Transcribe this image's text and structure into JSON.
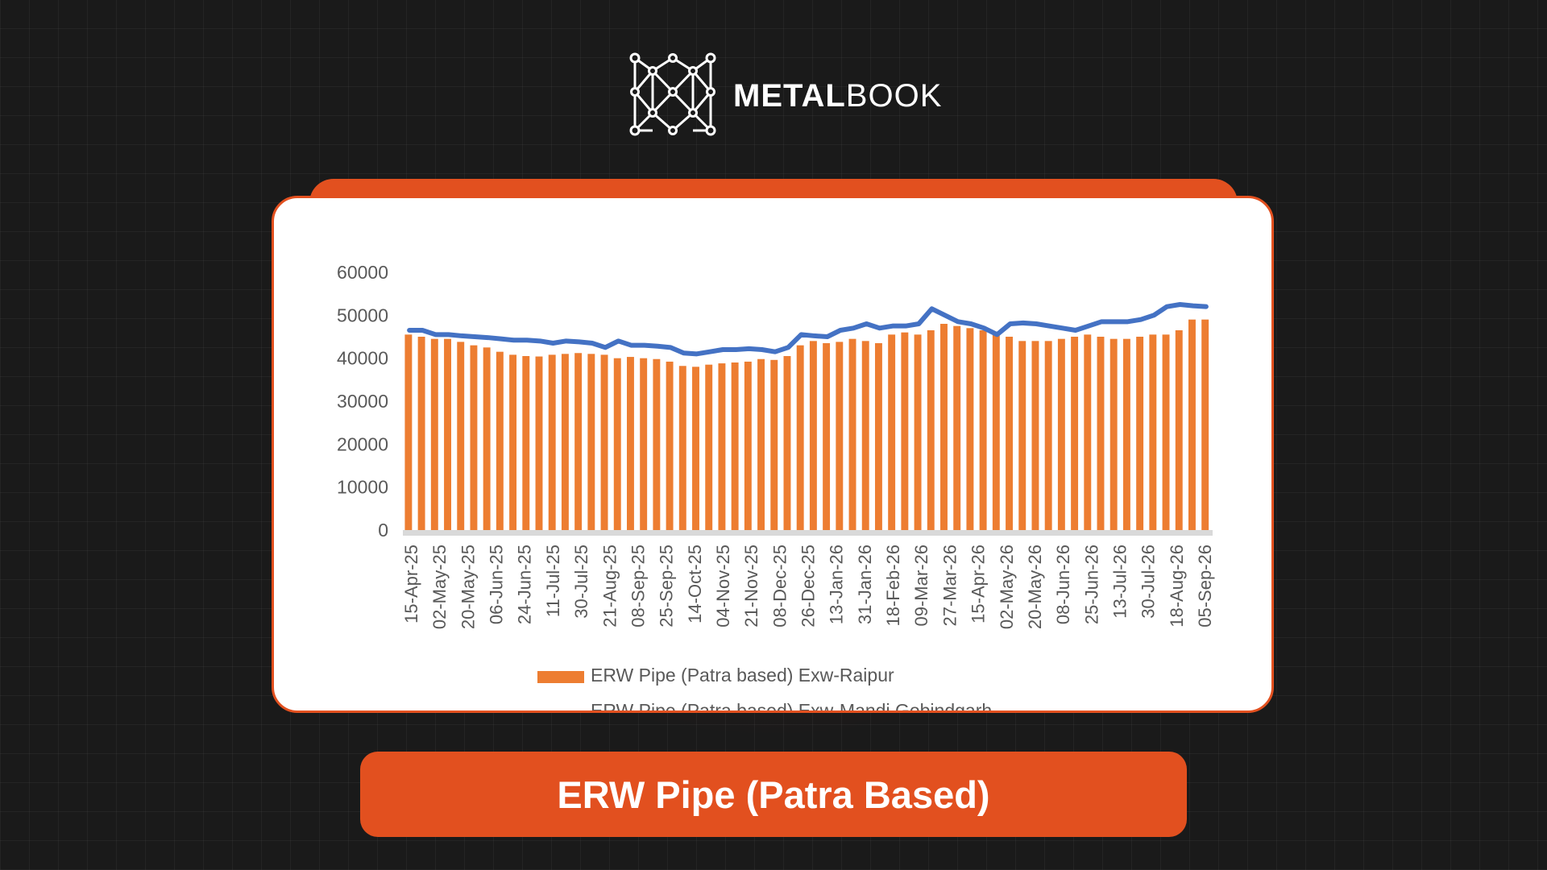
{
  "brand": {
    "name_bold": "METAL",
    "name_light": "BOOK",
    "logo_icon": "metalbook-network-m-icon"
  },
  "banner": {
    "title": "ERW Pipe (Patra Based)"
  },
  "colors": {
    "accent": "#e2501f",
    "bar_series": "#ed7d31",
    "line_series": "#4472c4",
    "background": "#1a1a1a"
  },
  "chart_data": {
    "type": "bar",
    "ylim": [
      0,
      60000
    ],
    "yticks": [
      0,
      10000,
      20000,
      30000,
      40000,
      50000,
      60000
    ],
    "x_tick_labels": [
      "15-Apr-25",
      "02-May-25",
      "20-May-25",
      "06-Jun-25",
      "24-Jun-25",
      "11-Jul-25",
      "30-Jul-25",
      "21-Aug-25",
      "08-Sep-25",
      "25-Sep-25",
      "14-Oct-25",
      "04-Nov-25",
      "21-Nov-25",
      "08-Dec-25",
      "26-Dec-25",
      "13-Jan-26",
      "31-Jan-26",
      "18-Feb-26",
      "09-Mar-26",
      "27-Mar-26",
      "15-Apr-26",
      "02-May-26",
      "20-May-26",
      "08-Jun-26",
      "25-Jun-26",
      "13-Jul-26",
      "30-Jul-26",
      "18-Aug-26",
      "05-Sep-26"
    ],
    "series": [
      {
        "name": "ERW Pipe (Patra based) Exw-Raipur",
        "kind": "bar",
        "values": [
          45500,
          45000,
          44500,
          44500,
          43800,
          43000,
          42500,
          41500,
          40800,
          40500,
          40400,
          40800,
          41000,
          41200,
          41000,
          40800,
          40000,
          40300,
          40000,
          39800,
          39200,
          38200,
          38000,
          38500,
          38800,
          39000,
          39200,
          39800,
          39600,
          40500,
          43000,
          44000,
          43500,
          43800,
          44500,
          44000,
          43500,
          45500,
          46000,
          45500,
          46500,
          48000,
          47500,
          47000,
          46500,
          46000,
          45000,
          44000,
          44000,
          44000,
          44500,
          45000,
          45500,
          45000,
          44500,
          44500,
          45000,
          45500,
          45500,
          46500,
          49000,
          49000
        ]
      },
      {
        "name": "ERW Pipe (Patra based) Exw-Mandi Gobindgarh",
        "kind": "line",
        "values": [
          46500,
          46500,
          45500,
          45500,
          45200,
          45000,
          44800,
          44500,
          44200,
          44200,
          44000,
          43500,
          44000,
          43800,
          43500,
          42500,
          44000,
          43000,
          43000,
          42800,
          42500,
          41200,
          41000,
          41500,
          42000,
          42000,
          42200,
          42000,
          41500,
          42500,
          45500,
          45200,
          45000,
          46500,
          47000,
          48000,
          47000,
          47500,
          47500,
          48000,
          51500,
          50000,
          48500,
          48000,
          47000,
          45500,
          48000,
          48200,
          48000,
          47500,
          47000,
          46500,
          47500,
          48500,
          48500,
          48500,
          49000,
          50000,
          52000,
          52500,
          52200,
          52000
        ]
      }
    ],
    "legend_position": "bottom",
    "grid": false
  }
}
